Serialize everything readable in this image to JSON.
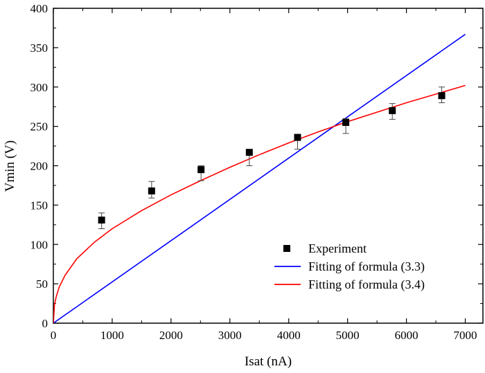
{
  "chart_data": {
    "type": "scatter",
    "xlabel": "Isat (nA)",
    "ylabel": "Vmin (V)",
    "xlim": [
      0,
      7300
    ],
    "ylim": [
      0,
      400
    ],
    "xticks": [
      0,
      1000,
      2000,
      3000,
      4000,
      5000,
      6000,
      7000
    ],
    "yticks": [
      0,
      50,
      100,
      150,
      200,
      250,
      300,
      350,
      400
    ],
    "xtick_labels": [
      "0",
      "1000",
      "2000",
      "3000",
      "4000",
      "5000",
      "6000",
      "7000"
    ],
    "ytick_labels": [
      "0",
      "50",
      "100",
      "150",
      "200",
      "250",
      "300",
      "350",
      "400"
    ],
    "grid": false,
    "legend_position": "bottom-right",
    "series": [
      {
        "name": "Experiment",
        "kind": "scatter-errorbar",
        "color": "#000000",
        "x": [
          820,
          1670,
          2510,
          3330,
          4150,
          4970,
          5760,
          6600
        ],
        "y": [
          131,
          168,
          195,
          217,
          236,
          255,
          270,
          289
        ],
        "yerr_low": [
          11,
          9,
          14,
          17,
          15,
          14,
          11,
          9
        ],
        "yerr_high": [
          9,
          12,
          5,
          3,
          4,
          5,
          9,
          11
        ]
      },
      {
        "name": "Fitting of formula (3.3)",
        "kind": "line",
        "color": "#0000ff",
        "x": [
          0,
          7000
        ],
        "y": [
          0,
          367
        ]
      },
      {
        "name": "Fitting of formula (3.4)",
        "kind": "line",
        "color": "#ff0000",
        "x": [
          0,
          20,
          50,
          100,
          200,
          400,
          700,
          1000,
          1500,
          2000,
          2500,
          3000,
          3500,
          4000,
          4500,
          5000,
          5500,
          6000,
          6500,
          7000
        ],
        "y": [
          0,
          24,
          34,
          46,
          61,
          82,
          103,
          120,
          143,
          163,
          181,
          198,
          214,
          229,
          243,
          256,
          268,
          280,
          291,
          302
        ]
      }
    ]
  }
}
